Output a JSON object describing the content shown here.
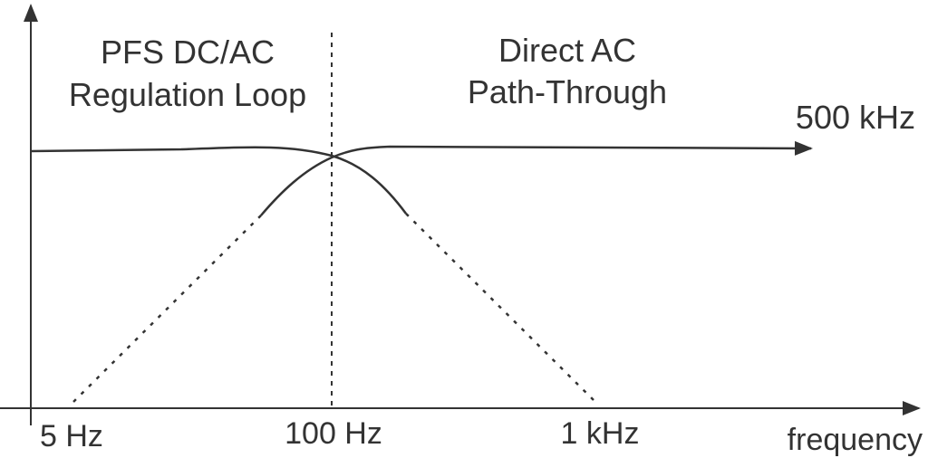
{
  "regions": {
    "left_line1": "PFS DC/AC",
    "left_line2": "Regulation Loop",
    "right_line1": "Direct AC",
    "right_line2": "Path-Through"
  },
  "labels": {
    "upper_limit": "500 kHz",
    "x_axis": "frequency",
    "tick_5hz": "5 Hz",
    "tick_100hz": "100 Hz",
    "tick_1khz": "1 kHz"
  },
  "colors": {
    "line": "#333333",
    "text": "#333333",
    "background": "#ffffff"
  }
}
